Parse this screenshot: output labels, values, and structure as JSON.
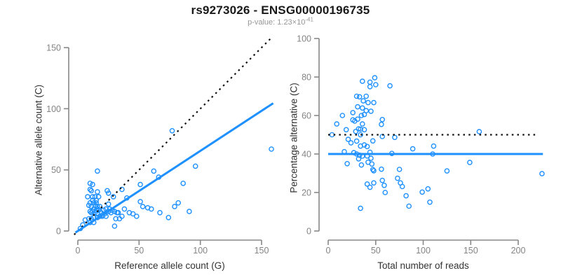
{
  "header": {
    "title": "rs9273026 - ENSG00000196735",
    "subtitle_prefix": "p-value: 1.23×10",
    "subtitle_exponent": "-41"
  },
  "colors": {
    "points": "#1E90FF",
    "fit_line": "#1E90FF",
    "reference_line": "#111111",
    "axis": "#888888",
    "tick_label": "#848484",
    "title": "#1a1a1a",
    "subtitle": "#969696",
    "axis_title": "#333333"
  },
  "chart_data": [
    {
      "type": "scatter",
      "xlabel": "Reference allele count (G)",
      "ylabel": "Alternative allele count (C)",
      "x_ticks": [
        0,
        50,
        100,
        150
      ],
      "y_ticks": [
        0,
        50,
        100,
        150
      ],
      "xlim": [
        0,
        160
      ],
      "ylim": [
        0,
        160
      ],
      "grid": false,
      "legend": "none",
      "points": [
        [
          16,
          49
        ],
        [
          10,
          39
        ],
        [
          12,
          38
        ],
        [
          10,
          34
        ],
        [
          11,
          33
        ],
        [
          16,
          32
        ],
        [
          24,
          33
        ],
        [
          25,
          31
        ],
        [
          29,
          28
        ],
        [
          17,
          28
        ],
        [
          12,
          28
        ],
        [
          8,
          28
        ],
        [
          14,
          28
        ],
        [
          12,
          25
        ],
        [
          15,
          25
        ],
        [
          10,
          23
        ],
        [
          13,
          23
        ],
        [
          15,
          23
        ],
        [
          25,
          22
        ],
        [
          9,
          21
        ],
        [
          11,
          20
        ],
        [
          14,
          21
        ],
        [
          16,
          20
        ],
        [
          18,
          20
        ],
        [
          36,
          34
        ],
        [
          51,
          38
        ],
        [
          40,
          27
        ],
        [
          51,
          24
        ],
        [
          62,
          49
        ],
        [
          66,
          44
        ],
        [
          77,
          82
        ],
        [
          86,
          39
        ],
        [
          96,
          53
        ],
        [
          158,
          67
        ],
        [
          13,
          18
        ],
        [
          16,
          18
        ],
        [
          21,
          17
        ],
        [
          23,
          18
        ],
        [
          26,
          18
        ],
        [
          28,
          17
        ],
        [
          30,
          16
        ],
        [
          33,
          15
        ],
        [
          15,
          17
        ],
        [
          17,
          17
        ],
        [
          12,
          16
        ],
        [
          10,
          16
        ],
        [
          25,
          16
        ],
        [
          27,
          15
        ],
        [
          32,
          15
        ],
        [
          11,
          15
        ],
        [
          14,
          15
        ],
        [
          16,
          14
        ],
        [
          19,
          15
        ],
        [
          20,
          13
        ],
        [
          22,
          14
        ],
        [
          20,
          12
        ],
        [
          23,
          12
        ],
        [
          18,
          12
        ],
        [
          16,
          11
        ],
        [
          13,
          11
        ],
        [
          11,
          10
        ],
        [
          9,
          10
        ],
        [
          6,
          9
        ],
        [
          10,
          7
        ],
        [
          13,
          7
        ],
        [
          2,
          2
        ],
        [
          4,
          5
        ],
        [
          36,
          12
        ],
        [
          31,
          10
        ],
        [
          34,
          10
        ],
        [
          48,
          12
        ],
        [
          42,
          15
        ],
        [
          45,
          14
        ],
        [
          38,
          18
        ],
        [
          53,
          20
        ],
        [
          57,
          19
        ],
        [
          60,
          18
        ],
        [
          67,
          15
        ],
        [
          74,
          11
        ],
        [
          79,
          20
        ],
        [
          82,
          23
        ],
        [
          91,
          16
        ],
        [
          30,
          4
        ]
      ],
      "lines": [
        {
          "name": "identity-line",
          "type": "abline",
          "slope": 1,
          "intercept": 0,
          "style": "dotted",
          "color": "#111111",
          "x_span": [
            -3,
            157.5
          ]
        },
        {
          "name": "fit-line",
          "type": "abline",
          "slope": 0.655,
          "intercept": 0,
          "style": "solid",
          "color": "#1E90FF",
          "x_span": [
            -2,
            159.5
          ]
        }
      ]
    },
    {
      "type": "scatter",
      "xlabel": "Total number of reads",
      "ylabel": "Percentage alternative (C)",
      "x_ticks": [
        0,
        50,
        100,
        150,
        200
      ],
      "y_ticks": [
        0,
        20,
        40,
        60,
        80,
        100
      ],
      "xlim": [
        0,
        226
      ],
      "ylim": [
        0,
        100
      ],
      "grid": false,
      "legend": "none",
      "points": [
        [
          65,
          75.4
        ],
        [
          49,
          79.6
        ],
        [
          50,
          76
        ],
        [
          44,
          77.3
        ],
        [
          44,
          75
        ],
        [
          48,
          66.7
        ],
        [
          57,
          57.9
        ],
        [
          56,
          55.4
        ],
        [
          57,
          49.1
        ],
        [
          45,
          62.2
        ],
        [
          40,
          70
        ],
        [
          36,
          77.8
        ],
        [
          42,
          66.7
        ],
        [
          37,
          67.6
        ],
        [
          40,
          62.5
        ],
        [
          33,
          69.7
        ],
        [
          36,
          63.9
        ],
        [
          38,
          60.5
        ],
        [
          47,
          46.8
        ],
        [
          30,
          70
        ],
        [
          31,
          64.5
        ],
        [
          35,
          60
        ],
        [
          36,
          55.6
        ],
        [
          38,
          52.6
        ],
        [
          70,
          48.6
        ],
        [
          89,
          42.7
        ],
        [
          67,
          40.3
        ],
        [
          75,
          32
        ],
        [
          111,
          44.1
        ],
        [
          110,
          40
        ],
        [
          159,
          51.6
        ],
        [
          125,
          31.2
        ],
        [
          149,
          35.6
        ],
        [
          225,
          29.8
        ],
        [
          31,
          58.1
        ],
        [
          34,
          52.9
        ],
        [
          38,
          44.7
        ],
        [
          41,
          43.9
        ],
        [
          44,
          40.9
        ],
        [
          45,
          37.8
        ],
        [
          46,
          34.8
        ],
        [
          48,
          31.3
        ],
        [
          32,
          53.1
        ],
        [
          34,
          50
        ],
        [
          28,
          57.1
        ],
        [
          26,
          61.5
        ],
        [
          41,
          39
        ],
        [
          42,
          35.7
        ],
        [
          47,
          31.9
        ],
        [
          26,
          57.7
        ],
        [
          29,
          51.7
        ],
        [
          30,
          46.7
        ],
        [
          34,
          44.1
        ],
        [
          33,
          39.4
        ],
        [
          36,
          38.9
        ],
        [
          32,
          37.5
        ],
        [
          35,
          34.3
        ],
        [
          30,
          40
        ],
        [
          27,
          40.7
        ],
        [
          24,
          45.8
        ],
        [
          21,
          47.6
        ],
        [
          19,
          52.6
        ],
        [
          15,
          60
        ],
        [
          17,
          41.2
        ],
        [
          20,
          35
        ],
        [
          4,
          50
        ],
        [
          9,
          55.6
        ],
        [
          48,
          25
        ],
        [
          41,
          24.4
        ],
        [
          44,
          22.7
        ],
        [
          60,
          20
        ],
        [
          57,
          26.3
        ],
        [
          59,
          23.7
        ],
        [
          56,
          32.1
        ],
        [
          73,
          27.4
        ],
        [
          76,
          25
        ],
        [
          78,
          23.1
        ],
        [
          82,
          18.3
        ],
        [
          85,
          12.9
        ],
        [
          99,
          20.2
        ],
        [
          105,
          21.9
        ],
        [
          107,
          15
        ],
        [
          34,
          11.8
        ]
      ],
      "lines": [
        {
          "name": "expected-line",
          "type": "hline",
          "y": 50,
          "style": "dotted",
          "color": "#111111",
          "x_span": [
            0,
            220.5
          ]
        },
        {
          "name": "observed-line",
          "type": "hline",
          "y": 40,
          "style": "solid",
          "color": "#1E90FF",
          "x_span": [
            0,
            226
          ]
        }
      ]
    }
  ]
}
